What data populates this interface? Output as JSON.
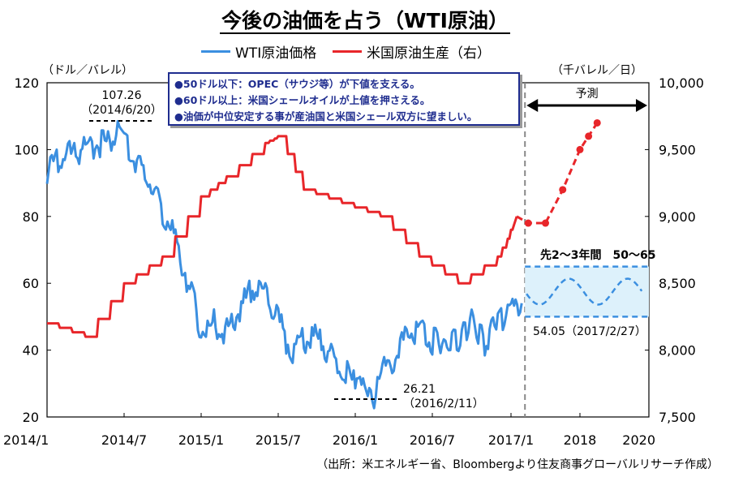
{
  "chart_data": {
    "type": "line",
    "title": "今後の油価を占う（WTI原油）",
    "left_unit": "（ドル／バレル）",
    "right_unit": "（千バレル／日）",
    "source": "（出所：米エネルギー省、Bloombergより住友商事グローバルリサーチ作成）",
    "x_ticks": [
      "2014/1",
      "2014/7",
      "2015/1",
      "2015/7",
      "2016/1",
      "2016/7",
      "2017/1",
      "2018",
      "2020"
    ],
    "y_left": {
      "ticks": [
        "120",
        "100",
        "80",
        "60",
        "40",
        "20"
      ],
      "ylim": [
        20,
        120
      ]
    },
    "y_right": {
      "ticks": [
        "10,000",
        "9,500",
        "9,000",
        "8,500",
        "8,000",
        "7,500"
      ],
      "ylim": [
        7500,
        10000
      ]
    },
    "series": [
      {
        "name": "WTI原油価格",
        "axis": "left",
        "color": "#3b8fe0",
        "x": [
          "2014/1",
          "2014/2",
          "2014/4",
          "2014/6",
          "2014/6/20",
          "2014/7",
          "2014/8",
          "2014/9",
          "2014/10",
          "2014/11",
          "2014/12",
          "2015/1",
          "2015/2",
          "2015/3",
          "2015/4",
          "2015/5",
          "2015/6",
          "2015/7",
          "2015/8",
          "2015/9",
          "2015/10",
          "2015/11",
          "2015/12",
          "2016/1",
          "2016/2/11",
          "2016/3",
          "2016/4",
          "2016/5",
          "2016/6",
          "2016/7",
          "2016/8",
          "2016/9",
          "2016/10",
          "2016/11",
          "2016/12",
          "2017/1",
          "2017/2/27"
        ],
        "values": [
          95,
          99,
          103,
          104,
          107.26,
          104,
          97,
          93,
          84,
          76,
          62,
          48,
          50,
          48,
          55,
          60,
          60,
          51,
          42,
          45,
          46,
          42,
          37,
          32,
          26.21,
          36,
          40,
          47,
          49,
          45,
          44,
          46,
          51,
          45,
          52,
          53,
          54.05
        ]
      },
      {
        "name": "米国原油生産（右）",
        "axis": "right",
        "color": "#e8262a",
        "x": [
          "2014/1",
          "2014/4",
          "2014/7",
          "2014/10",
          "2015/1",
          "2015/3",
          "2015/6",
          "2015/7",
          "2015/9",
          "2015/12",
          "2016/3",
          "2016/6",
          "2016/9",
          "2016/12",
          "2017/1",
          "2017/2",
          "2017/4",
          "2017/7",
          "2017/10",
          "2018/1",
          "2018/4",
          "2018/7"
        ],
        "values": [
          8200,
          8100,
          8500,
          8700,
          9150,
          9300,
          9550,
          9600,
          9200,
          9100,
          9000,
          8700,
          8500,
          8700,
          8900,
          9000,
          8950,
          8950,
          9200,
          9500,
          9600,
          9700
        ],
        "forecast_from": "2017/2"
      }
    ],
    "annotations": {
      "peak_value": "107.26",
      "peak_date": "（2014/6/20）",
      "trough_value": "26.21",
      "trough_date": "（2016/2/11）",
      "latest": "54.05（2017/2/27）",
      "forecast_label": "予測",
      "range_label": "先2～3年間　50～65",
      "range": [
        50,
        65
      ]
    },
    "notes": [
      "●50ドル以下：OPEC（サウジ等）が下値を支える。",
      "●60ドル以上：米国シェールオイルが上値を押さえる。",
      "●油価が中位安定する事が産油国と米国シェール双方に望ましい。"
    ],
    "grid": false,
    "legend_position": "top-center"
  }
}
